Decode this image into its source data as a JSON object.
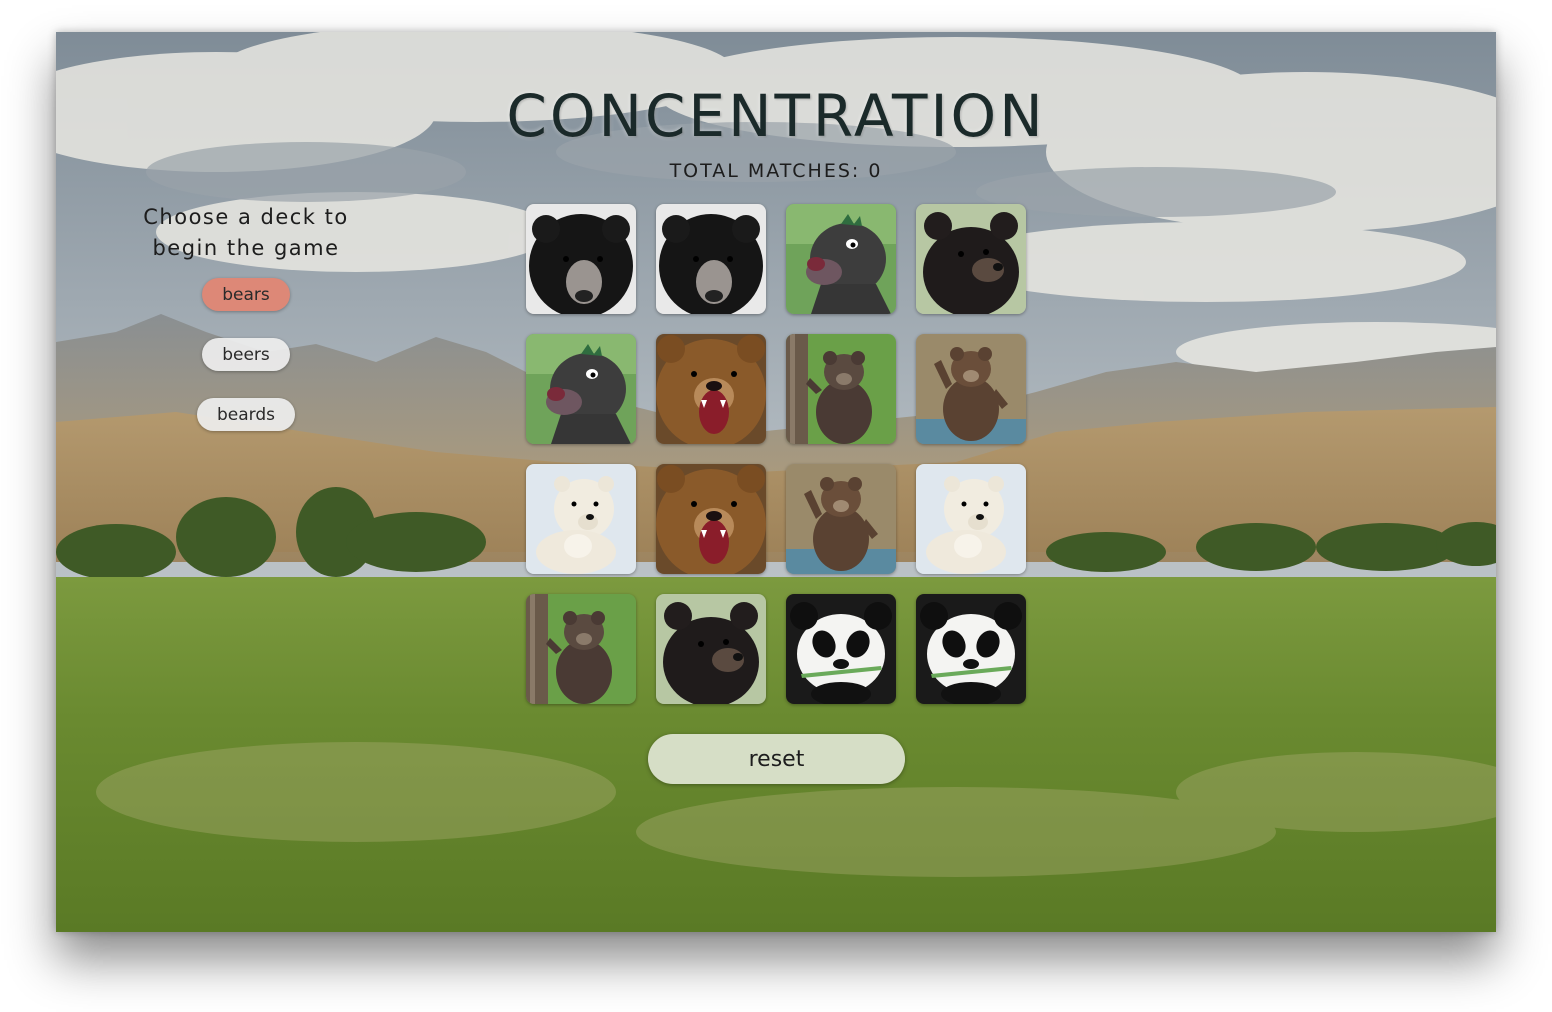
{
  "game": {
    "title": "CONCENTRATION",
    "score_label": "TOTAL MATCHES: 0",
    "reset_label": "reset"
  },
  "deck_panel": {
    "prompt_line1": "Choose a deck to",
    "prompt_line2": "begin the game",
    "decks": [
      {
        "label": "bears",
        "selected": true
      },
      {
        "label": "beers",
        "selected": false
      },
      {
        "label": "beards",
        "selected": false
      }
    ]
  },
  "cards": [
    "sloth-bear",
    "sloth-bear",
    "cartoon-bear",
    "black-bear",
    "cartoon-bear",
    "grizzly-roar",
    "cub-on-tree",
    "waving-bear",
    "polar-bear",
    "grizzly-roar",
    "waving-bear",
    "polar-bear",
    "cub-on-tree",
    "black-bear",
    "panda",
    "panda"
  ],
  "colors": {
    "selected_deck": "#dd8877",
    "deck_button": "#eeeeee",
    "title_text": "#1b2a2a",
    "reset_button": "#e2e8d7"
  }
}
